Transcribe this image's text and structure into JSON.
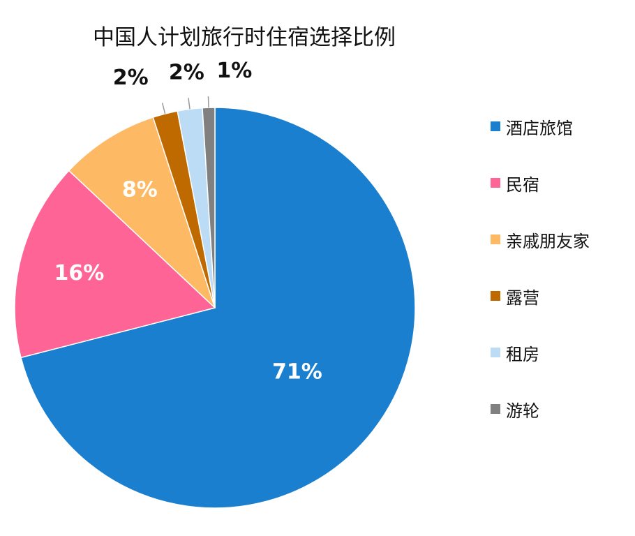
{
  "chart_data": {
    "type": "pie",
    "title": "中国人计划旅行时住宿选择比例",
    "categories": [
      "酒店旅馆",
      "民宿",
      "亲戚朋友家",
      "露营",
      "租房",
      "游轮"
    ],
    "values": [
      71,
      16,
      8,
      2,
      2,
      1
    ],
    "value_labels": [
      "71%",
      "16%",
      "8%",
      "2%",
      "2%",
      "1%"
    ],
    "colors": [
      "#1a7fcf",
      "#fe6496",
      "#fdb964",
      "#bf6a00",
      "#bcdcf5",
      "#808080"
    ],
    "legend_position": "right",
    "start_angle_deg": 0,
    "direction": "clockwise"
  }
}
